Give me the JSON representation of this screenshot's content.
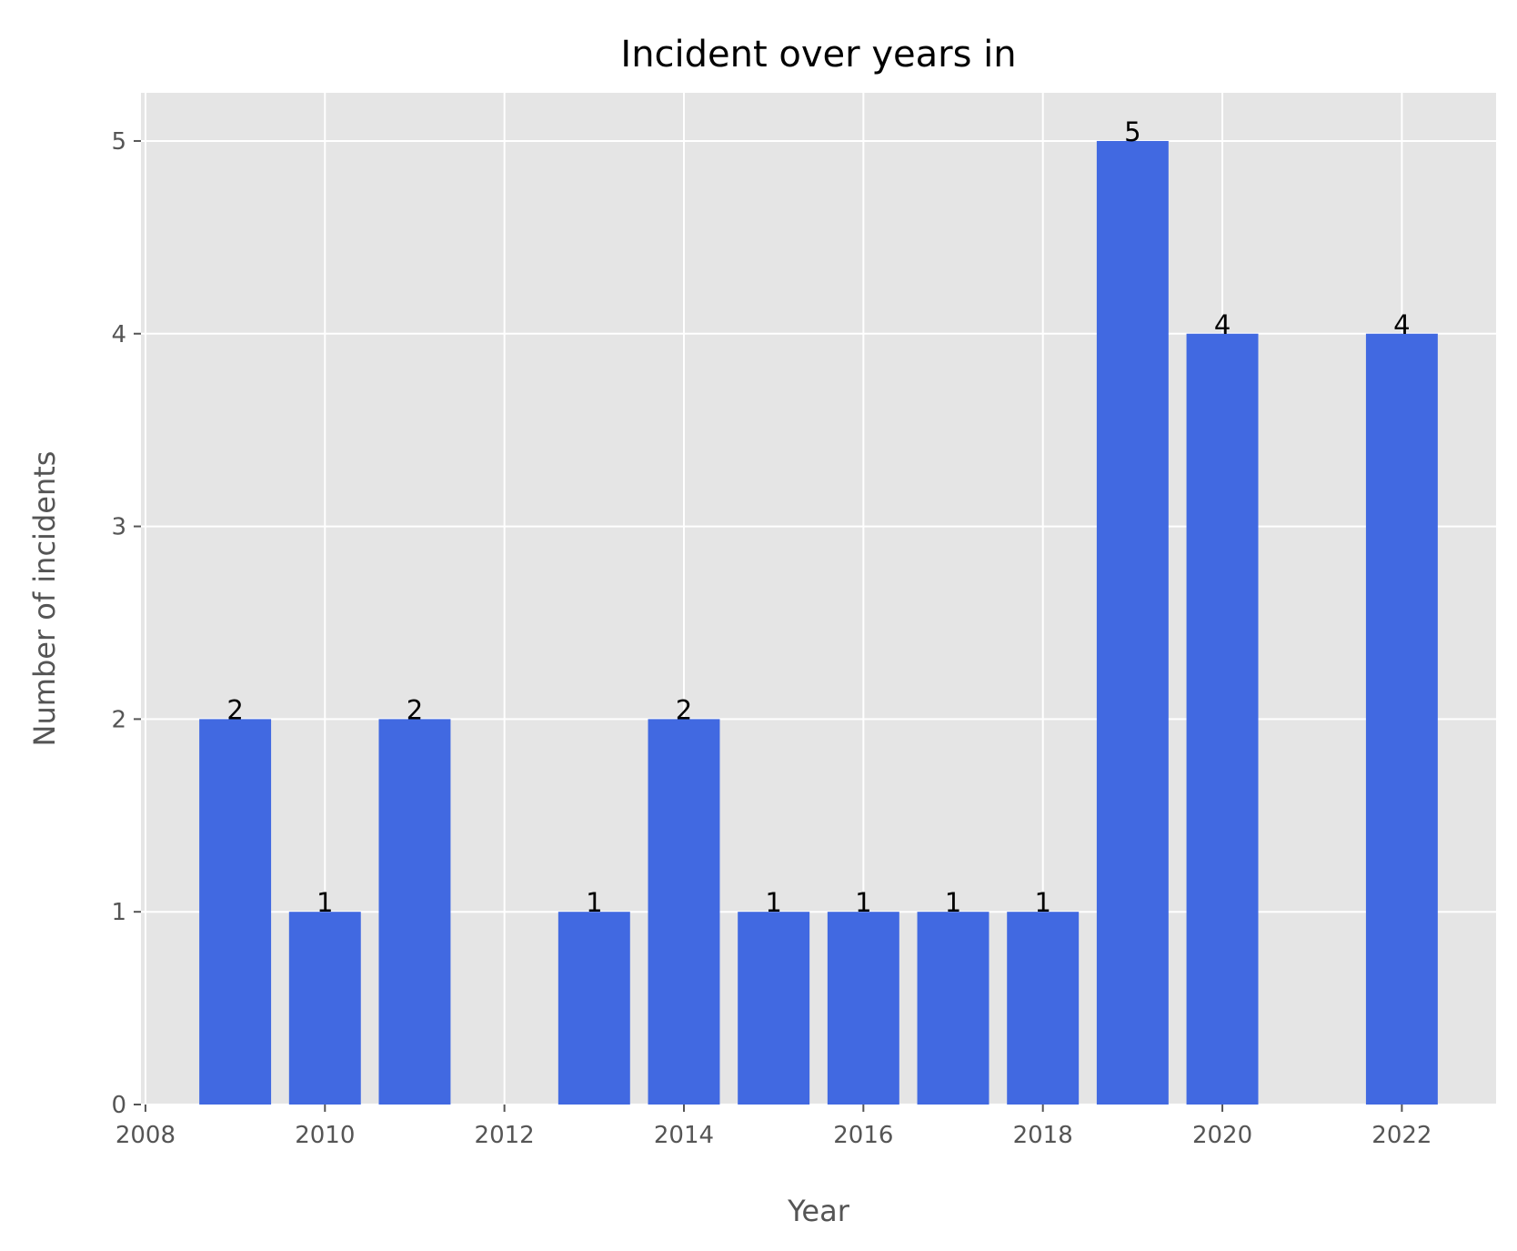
{
  "chart_data": {
    "type": "bar",
    "title": "Incident over years in",
    "xlabel": "Year",
    "ylabel": "Number of incidents",
    "x": [
      2009,
      2010,
      2011,
      2013,
      2014,
      2015,
      2016,
      2017,
      2018,
      2019,
      2020,
      2022
    ],
    "values": [
      2,
      1,
      2,
      1,
      2,
      1,
      1,
      1,
      1,
      5,
      4,
      4
    ],
    "data_labels": [
      "2",
      "1",
      "2",
      "1",
      "2",
      "1",
      "1",
      "1",
      "1",
      "5",
      "4",
      "4"
    ],
    "xticks": [
      2008,
      2010,
      2012,
      2014,
      2016,
      2018,
      2020,
      2022
    ],
    "xtick_labels": [
      "2008",
      "2010",
      "2012",
      "2014",
      "2016",
      "2018",
      "2020",
      "2022"
    ],
    "yticks": [
      0,
      1,
      2,
      3,
      4,
      5
    ],
    "ytick_labels": [
      "0",
      "1",
      "2",
      "3",
      "4",
      "5"
    ],
    "xlim": [
      2007.95,
      2023.05
    ],
    "ylim": [
      0,
      5.25
    ],
    "grid": true,
    "bar_color": "#4169E1",
    "plot_background": "#E5E5E5",
    "grid_color": "#FFFFFF"
  }
}
